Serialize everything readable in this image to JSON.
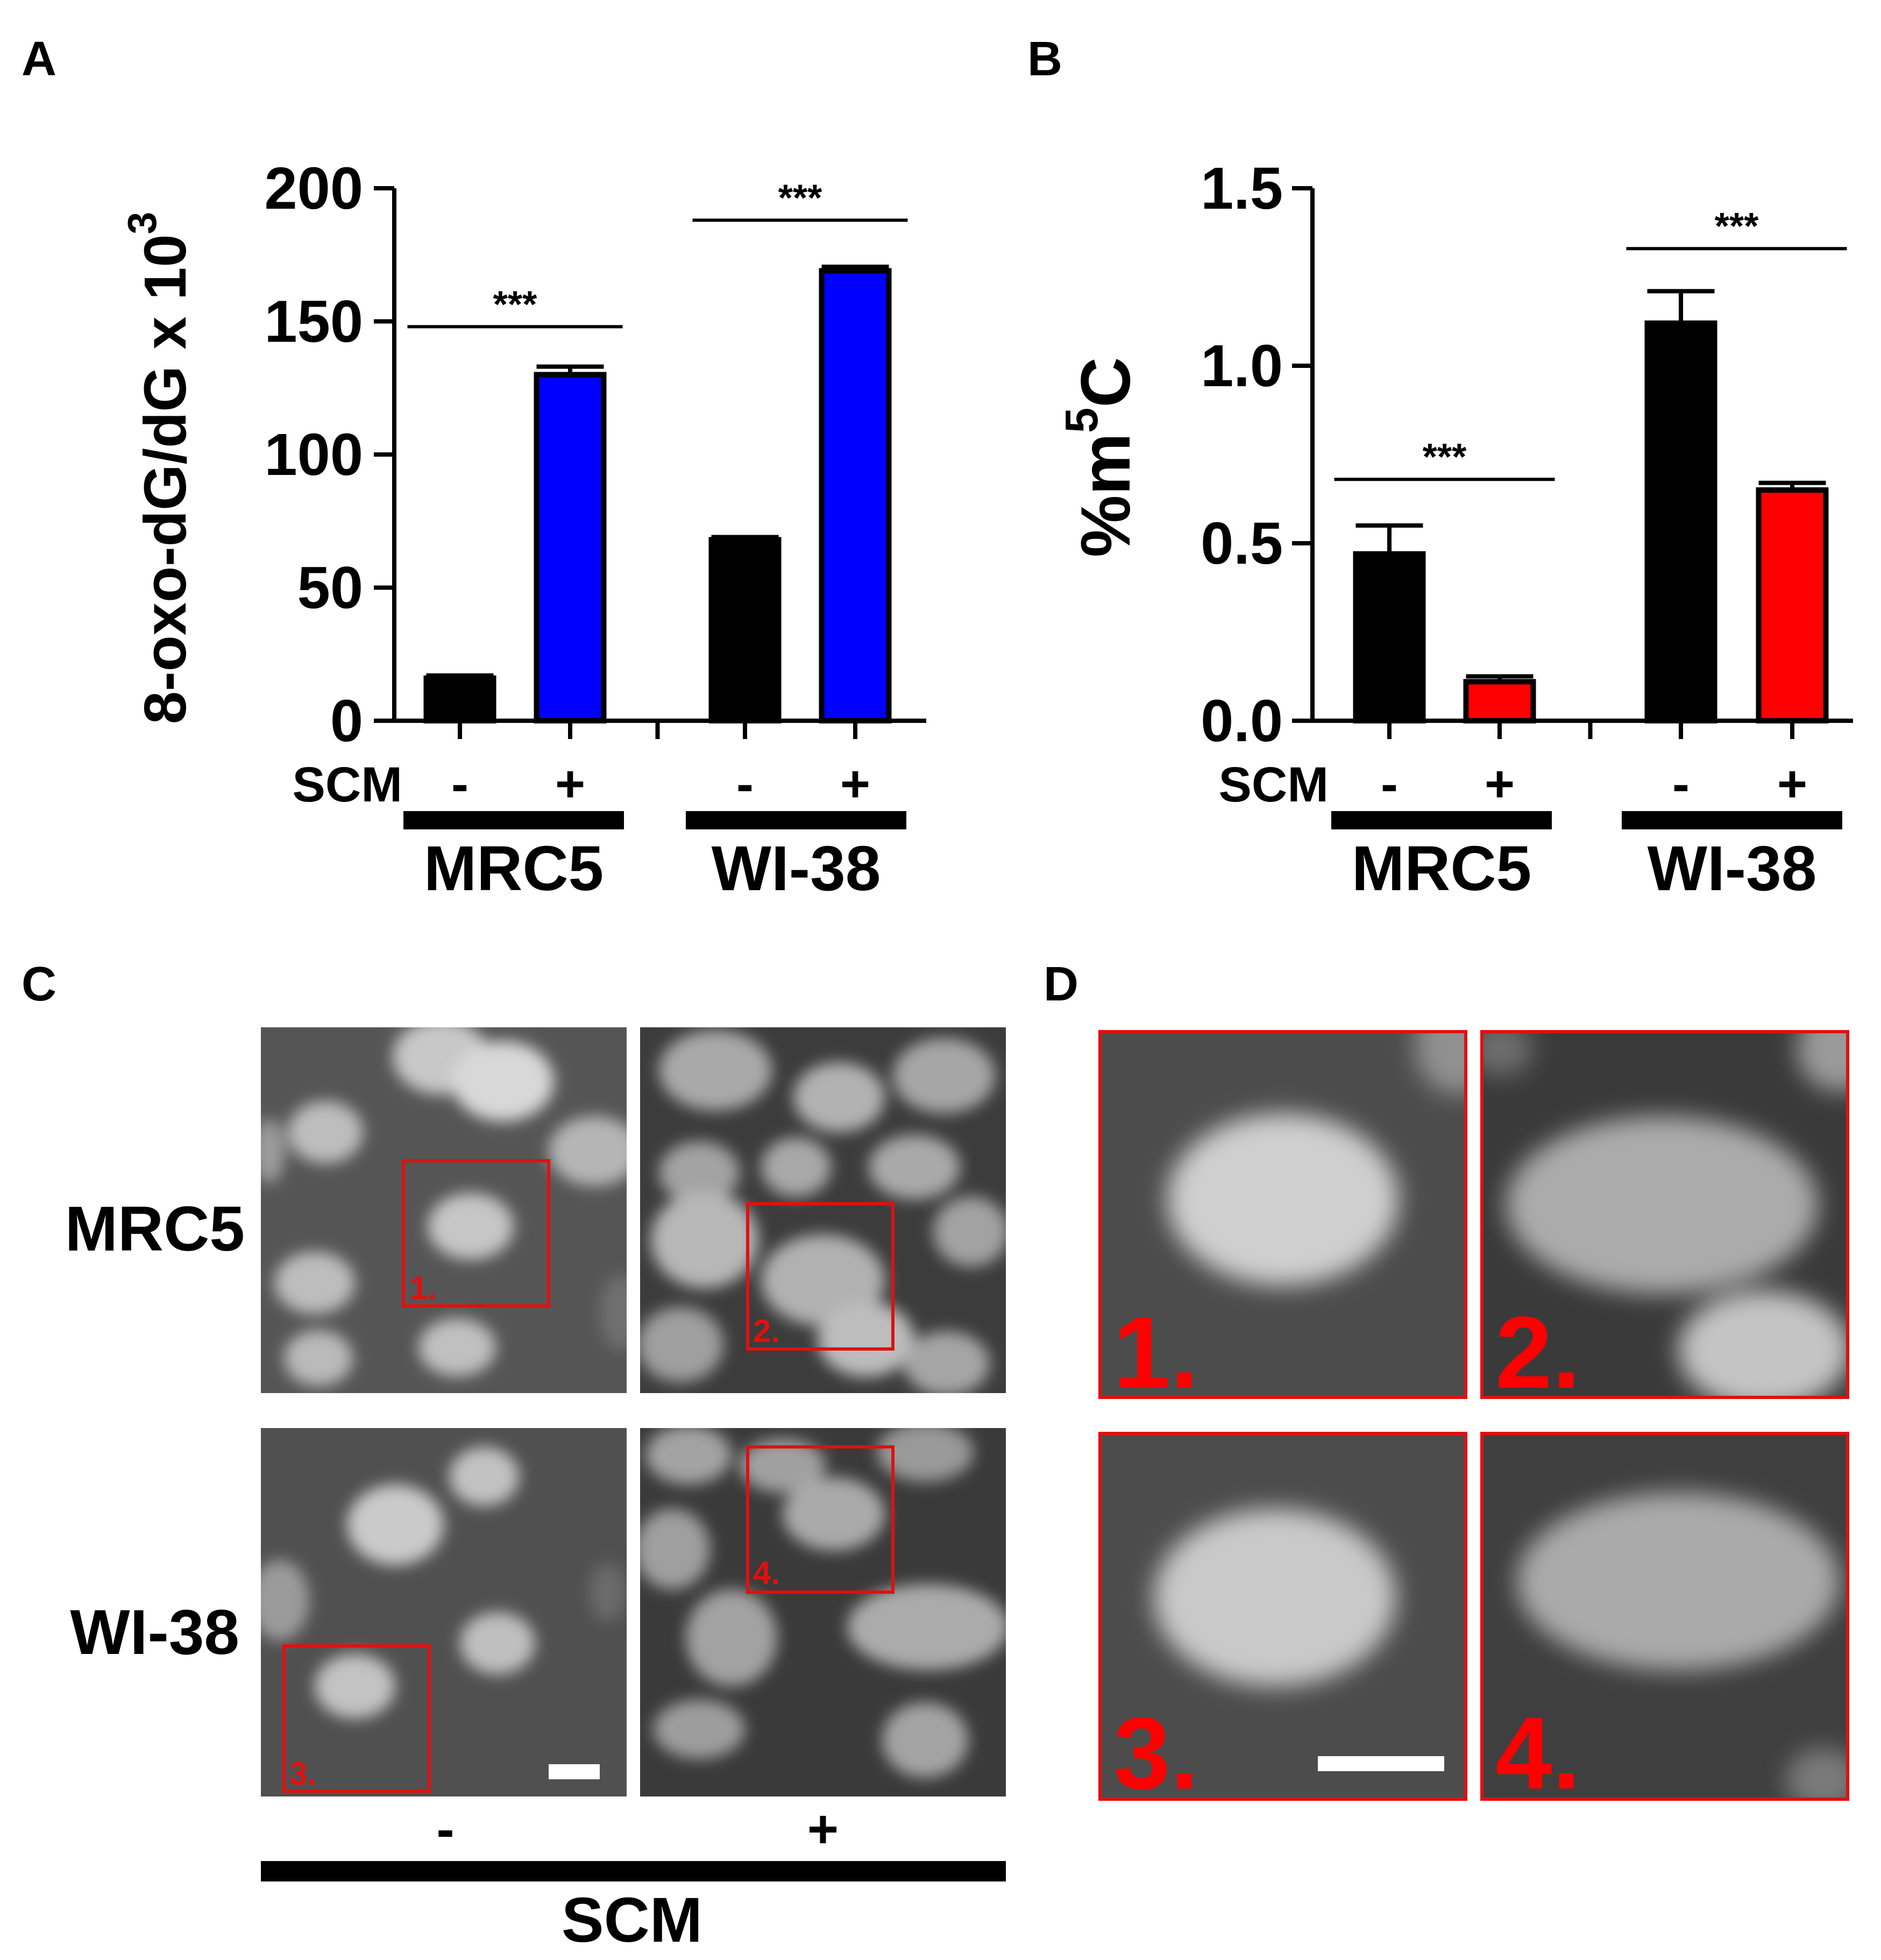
{
  "panel_labels": {
    "a": "A",
    "b": "B",
    "c": "C",
    "d": "D"
  },
  "colors": {
    "black": "#000000",
    "blue": "#0000ff",
    "red": "#ff0000",
    "box": "#e01010"
  },
  "chart_data": [
    {
      "type": "bar",
      "panel": "A",
      "ylabel": "8-oxo-dG/dG x 10",
      "ylabel_sup": "3",
      "ylim": [
        0,
        200
      ],
      "yticks": [
        0,
        50,
        100,
        150,
        200
      ],
      "ytick_labels": [
        "0",
        "50",
        "100",
        "150",
        "200"
      ],
      "treatment_label": "SCM",
      "treatment_marks": [
        "-",
        "+",
        "-",
        "+"
      ],
      "groups": [
        "MRC5",
        "WI-38"
      ],
      "bars": [
        {
          "group": "MRC5",
          "scm": "-",
          "value": 16,
          "error": 1,
          "color": "black"
        },
        {
          "group": "MRC5",
          "scm": "+",
          "value": 130,
          "error": 3,
          "color": "blue"
        },
        {
          "group": "WI-38",
          "scm": "-",
          "value": 68,
          "error": 1,
          "color": "black"
        },
        {
          "group": "WI-38",
          "scm": "+",
          "value": 169,
          "error": 1.5,
          "color": "blue"
        }
      ],
      "significance": [
        {
          "group": "MRC5",
          "label": "***",
          "y": 148
        },
        {
          "group": "WI-38",
          "label": "***",
          "y": 188
        }
      ]
    },
    {
      "type": "bar",
      "panel": "B",
      "ylabel": "%m",
      "ylabel_sup": "5",
      "ylabel_end": "C",
      "ylim": [
        0,
        1.5
      ],
      "yticks": [
        0,
        0.5,
        1.0,
        1.5
      ],
      "ytick_labels": [
        "0.0",
        "0.5",
        "1.0",
        "1.5"
      ],
      "treatment_label": "SCM",
      "treatment_marks": [
        "-",
        "+",
        "-",
        "+"
      ],
      "groups": [
        "MRC5",
        "WI-38"
      ],
      "bars": [
        {
          "group": "MRC5",
          "scm": "-",
          "value": 0.47,
          "error": 0.08,
          "color": "black"
        },
        {
          "group": "MRC5",
          "scm": "+",
          "value": 0.11,
          "error": 0.015,
          "color": "red"
        },
        {
          "group": "WI-38",
          "scm": "-",
          "value": 1.12,
          "error": 0.09,
          "color": "black"
        },
        {
          "group": "WI-38",
          "scm": "+",
          "value": 0.65,
          "error": 0.02,
          "color": "red"
        }
      ],
      "significance": [
        {
          "group": "MRC5",
          "label": "***",
          "y": 0.68
        },
        {
          "group": "WI-38",
          "label": "***",
          "y": 1.33
        }
      ]
    }
  ],
  "panel_c": {
    "row_labels": [
      "MRC5",
      "WI-38"
    ],
    "col_labels": [
      "-",
      "+"
    ],
    "treatment_label": "SCM",
    "box_labels": [
      "1.",
      "2.",
      "3.",
      "4."
    ]
  },
  "panel_d": {
    "box_labels": [
      "1.",
      "2.",
      "3.",
      "4."
    ]
  }
}
